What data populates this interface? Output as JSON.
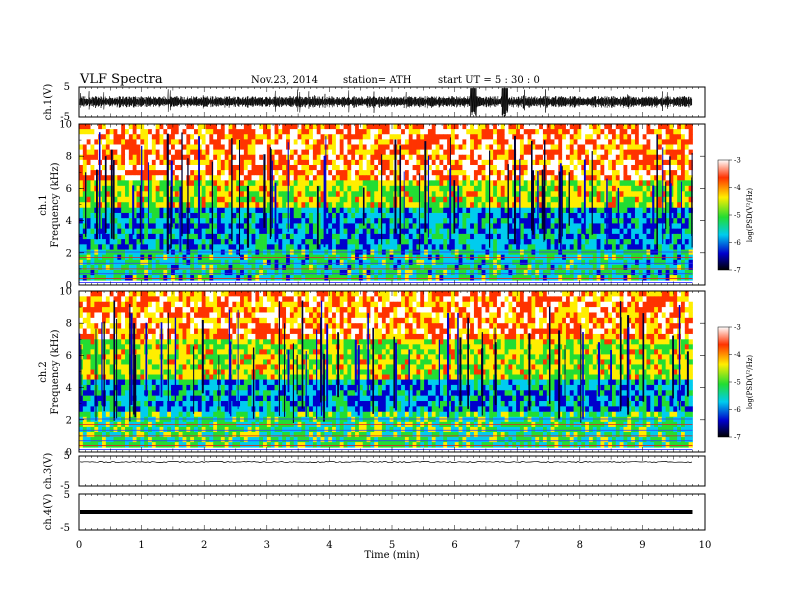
{
  "header": {
    "title": "VLF  Spectra",
    "date": "Nov.23, 2014",
    "station": "station= ATH",
    "start": "start  UT  =   5  : 30 : 0"
  },
  "colorbar": {
    "label": "log(PSD(V²/Hz)",
    "ticks": [
      "-3",
      "-4",
      "-5",
      "-6",
      "-7"
    ],
    "colors": [
      "#ffffff",
      "#ff3300",
      "#ffee00",
      "#22dd33",
      "#00ccee",
      "#0000cc",
      "#000000"
    ]
  },
  "chart_data": [
    {
      "type": "line",
      "name": "ch.1 waveform",
      "ylabel": "ch.1(V)",
      "ylim": [
        -5,
        5
      ],
      "y_ticks": [
        "5",
        "-5"
      ],
      "xlim": [
        0,
        10
      ],
      "x_unit": "min",
      "amplitude_typical_V": [
        -1.5,
        1.5
      ],
      "spikes_near_min": [
        6.3,
        6.8
      ]
    },
    {
      "type": "heatmap",
      "name": "ch.1 spectrogram",
      "ylabel_lines": [
        "ch.1",
        "Frequency (kHz)"
      ],
      "ylim": [
        0,
        10
      ],
      "y_ticks": [
        "0",
        "2",
        "4",
        "6",
        "8",
        "10"
      ],
      "xlim": [
        0,
        10
      ],
      "value": "log(PSD(V²/Hz)",
      "zlim": [
        -7,
        -3
      ],
      "bands_kHz": [
        {
          "from": 6.5,
          "to": 10,
          "level": -3.6
        },
        {
          "from": 4.8,
          "to": 6.5,
          "level": -4.6
        },
        {
          "from": 2.2,
          "to": 4.8,
          "level": -5.8
        },
        {
          "from": 0.3,
          "to": 2.2,
          "level": -5.4
        }
      ]
    },
    {
      "type": "heatmap",
      "name": "ch.2 spectrogram",
      "ylabel_lines": [
        "ch.2",
        "Frequency (kHz)"
      ],
      "ylim": [
        0,
        10
      ],
      "y_ticks": [
        "0",
        "2",
        "4",
        "6",
        "8",
        "10"
      ],
      "xlim": [
        0,
        10
      ],
      "value": "log(PSD(V²/Hz)",
      "zlim": [
        -7,
        -3
      ],
      "bands_kHz": [
        {
          "from": 7.0,
          "to": 10,
          "level": -3.7
        },
        {
          "from": 4.5,
          "to": 7.0,
          "level": -4.6
        },
        {
          "from": 2.5,
          "to": 4.5,
          "level": -5.8
        },
        {
          "from": 0.3,
          "to": 2.5,
          "level": -5.2
        }
      ]
    },
    {
      "type": "line",
      "name": "ch.3 waveform",
      "ylabel": "ch.3(V)",
      "ylim": [
        -5,
        5
      ],
      "y_ticks": [
        "5",
        "-5"
      ],
      "xlim": [
        0,
        10
      ],
      "level_V": 3.0
    },
    {
      "type": "line",
      "name": "ch.4 waveform",
      "ylabel": "ch.4(V)",
      "ylim": [
        -5,
        5
      ],
      "y_ticks": [
        "5",
        "-5"
      ],
      "xlim": [
        0,
        10
      ],
      "level_V": 0.0
    }
  ],
  "xaxis": {
    "label": "Time  (min)",
    "ticks": [
      "0",
      "1",
      "2",
      "3",
      "4",
      "5",
      "6",
      "7",
      "8",
      "9",
      "10"
    ],
    "data_end_min": 9.8
  }
}
